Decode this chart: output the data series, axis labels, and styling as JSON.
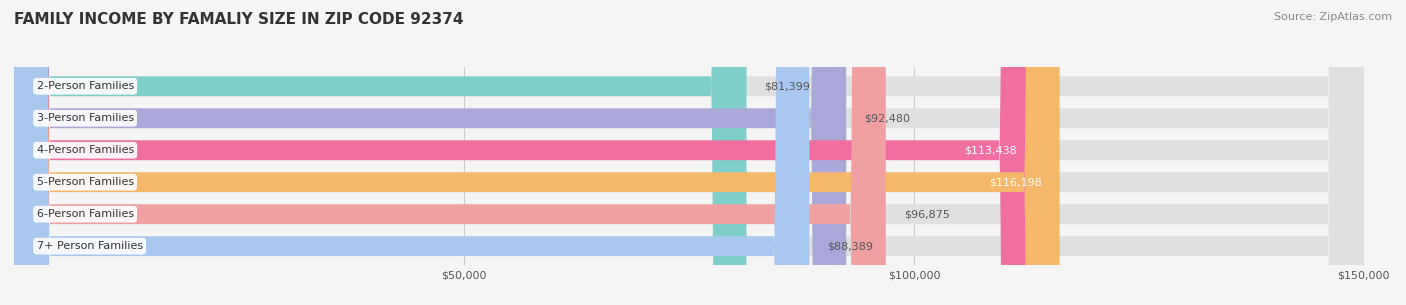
{
  "title": "FAMILY INCOME BY FAMALIY SIZE IN ZIP CODE 92374",
  "source": "Source: ZipAtlas.com",
  "categories": [
    "2-Person Families",
    "3-Person Families",
    "4-Person Families",
    "5-Person Families",
    "6-Person Families",
    "7+ Person Families"
  ],
  "values": [
    81399,
    92480,
    113438,
    116198,
    96875,
    88389
  ],
  "labels": [
    "$81,399",
    "$92,480",
    "$113,438",
    "$116,198",
    "$96,875",
    "$88,389"
  ],
  "bar_colors": [
    "#7ececa",
    "#a9a8d8",
    "#f06fa0",
    "#f5b86a",
    "#f0a0a0",
    "#a8c8f0"
  ],
  "label_colors": [
    "#555555",
    "#555555",
    "#ffffff",
    "#ffffff",
    "#555555",
    "#555555"
  ],
  "background_color": "#f5f5f5",
  "bar_background": "#e0e0e0",
  "xlim": [
    0,
    150000
  ],
  "xticks": [
    50000,
    100000,
    150000
  ],
  "xtick_labels": [
    "$50,000",
    "$100,000",
    "$150,000"
  ],
  "title_fontsize": 11,
  "source_fontsize": 8,
  "label_fontsize": 8,
  "category_fontsize": 8,
  "bar_height": 0.62
}
